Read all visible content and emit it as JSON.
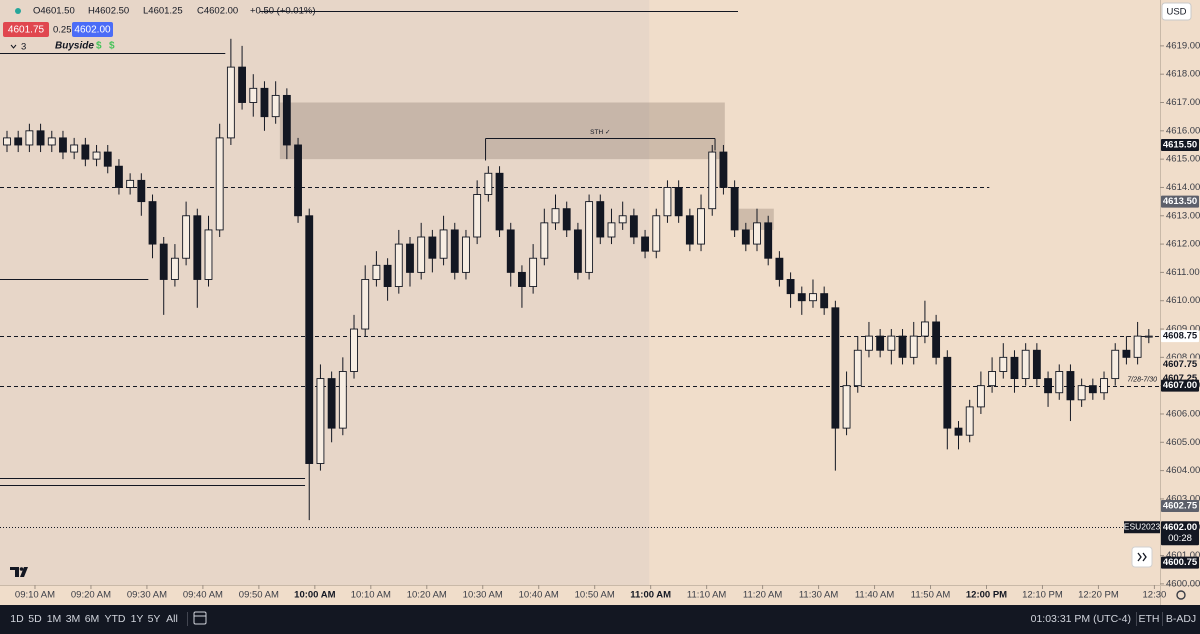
{
  "header": {
    "ohlc": [
      "O4601.50",
      "H4602.50",
      "L4601.25",
      "C4602.00",
      "+0.50 (+0.01%)"
    ],
    "bid": "4601.75",
    "spread": "0.25",
    "ask": "4602.00",
    "indicator_count": "3",
    "indicator": "Buyside",
    "badges": [
      "$",
      "$"
    ],
    "currency": "USD"
  },
  "chart_data": {
    "type": "candlestick",
    "x": [
      545,
      547,
      549,
      551,
      553,
      555,
      557,
      559,
      561,
      563,
      565,
      567,
      569,
      571,
      573,
      575,
      577,
      579,
      581,
      583,
      585,
      587,
      589,
      591,
      593,
      595,
      597,
      599,
      601,
      603,
      605,
      607,
      609,
      611,
      613,
      615,
      617,
      619,
      621,
      623,
      625,
      627,
      629,
      631,
      633,
      635,
      637,
      639,
      641,
      643,
      645,
      647,
      649,
      651,
      653,
      655,
      657,
      659,
      661,
      663,
      665,
      667,
      669,
      671,
      673,
      675,
      677,
      679,
      681,
      683,
      685,
      687,
      689,
      691,
      693,
      695,
      697,
      699,
      701,
      703,
      705,
      707,
      709,
      711,
      713,
      715,
      717,
      719,
      721,
      723,
      725,
      727,
      729,
      731,
      733,
      735,
      737,
      739,
      741,
      743,
      745,
      747,
      749
    ],
    "open": [
      4615.5,
      4615.75,
      4615.5,
      4616,
      4615.5,
      4615.75,
      4615.25,
      4615.5,
      4615,
      4615.25,
      4614.75,
      4614,
      4614.25,
      4613.5,
      4612,
      4610.75,
      4611.5,
      4613,
      4610.75,
      4612.5,
      4615.75,
      4618.25,
      4617,
      4617.5,
      4616.5,
      4617.25,
      4615.5,
      4613,
      4604.25,
      4607.25,
      4605.5,
      4607.5,
      4609,
      4610.75,
      4611.25,
      4610.5,
      4612,
      4611,
      4612.25,
      4611.5,
      4612.5,
      4611,
      4612.25,
      4613.75,
      4614.5,
      4612.5,
      4611,
      4610.5,
      4611.5,
      4612.75,
      4613.25,
      4612.5,
      4611,
      4613.5,
      4612.25,
      4612.75,
      4613,
      4612.25,
      4611.75,
      4613,
      4614,
      4613,
      4612,
      4613.25,
      4615.25,
      4614,
      4612.5,
      4612,
      4612.75,
      4611.5,
      4610.75,
      4610.25,
      4610,
      4610.25,
      4609.75,
      4605.5,
      4607,
      4608.25,
      4608.75,
      4608.25,
      4608.75,
      4608,
      4608.75,
      4609.25,
      4608,
      4605.5,
      4605.25,
      4606.25,
      4607,
      4607.5,
      4608,
      4607.25,
      4608.25,
      4607.25,
      4606.75,
      4607.5,
      4606.5,
      4607,
      4606.75,
      4607.25,
      4608.25,
      4608,
      4608.75
    ],
    "high": [
      4616,
      4616,
      4616.25,
      4616.25,
      4616,
      4616,
      4615.75,
      4615.75,
      4615.5,
      4615.5,
      4615,
      4614.5,
      4614.5,
      4613.75,
      4612.25,
      4612,
      4613.5,
      4613.25,
      4613,
      4616.25,
      4619.25,
      4619,
      4618,
      4617.75,
      4617.75,
      4617.5,
      4615.75,
      4613.25,
      4607.75,
      4607.5,
      4608,
      4609.5,
      4611.25,
      4611.75,
      4611.5,
      4612.5,
      4612.25,
      4612.75,
      4612.5,
      4613,
      4612.75,
      4612.5,
      4614.25,
      4614.75,
      4614.75,
      4612.75,
      4611.25,
      4612,
      4613.25,
      4613.75,
      4613.5,
      4612.75,
      4613.75,
      4613.75,
      4613.25,
      4613.5,
      4613.25,
      4612.5,
      4613.25,
      4614.25,
      4614.25,
      4613.25,
      4613.75,
      4615.5,
      4615.5,
      4614.25,
      4612.75,
      4613.25,
      4613,
      4611.75,
      4611,
      4610.5,
      4610.75,
      4610.5,
      4610,
      4607.5,
      4608.75,
      4609.25,
      4609,
      4609,
      4609,
      4609.25,
      4610,
      4609.5,
      4608.25,
      4605.75,
      4606.5,
      4607.5,
      4608,
      4608.5,
      4608.25,
      4608.5,
      4608.5,
      4607.5,
      4607.75,
      4607.75,
      4607.25,
      4607.25,
      4607.5,
      4608.5,
      4608.75,
      4609.25,
      4609
    ],
    "low": [
      4615.25,
      4615.25,
      4615.25,
      4615.25,
      4615.25,
      4615,
      4615,
      4614.75,
      4614.75,
      4614.5,
      4613.75,
      4613.75,
      4613,
      4611.5,
      4609.5,
      4610.5,
      4611.25,
      4609.75,
      4610.5,
      4612.25,
      4615.5,
      4616.75,
      4616.5,
      4616,
      4616.25,
      4615,
      4612.75,
      4602.25,
      4604,
      4605,
      4605.25,
      4607.25,
      4608.75,
      4610.5,
      4610,
      4610.25,
      4610.5,
      4610.75,
      4611,
      4611.25,
      4610.75,
      4610.75,
      4612,
      4613.5,
      4612.25,
      4610.5,
      4609.75,
      4610.25,
      4611.25,
      4612.5,
      4612.25,
      4610.75,
      4610.75,
      4612,
      4612,
      4612.5,
      4612,
      4611.5,
      4611.5,
      4612.75,
      4612.75,
      4611.75,
      4611.75,
      4613,
      4613.75,
      4612.25,
      4611.75,
      4611.75,
      4611.25,
      4610.5,
      4609.75,
      4609.5,
      4609.75,
      4609.5,
      4604,
      4605.25,
      4606.75,
      4608,
      4608,
      4607.75,
      4607.75,
      4607.75,
      4608.5,
      4607.75,
      4604.75,
      4604.75,
      4605,
      4606,
      4606.75,
      4607.25,
      4606.75,
      4607,
      4607,
      4606.25,
      4606.5,
      4605.75,
      4606.25,
      4606.5,
      4606.5,
      4607,
      4607.75,
      4607.75,
      4608.5
    ],
    "close": [
      4615.75,
      4615.5,
      4616,
      4615.5,
      4615.75,
      4615.25,
      4615.5,
      4615,
      4615.25,
      4614.75,
      4614,
      4614.25,
      4613.5,
      4612,
      4610.75,
      4611.5,
      4613,
      4610.75,
      4612.5,
      4615.75,
      4618.25,
      4617,
      4617.5,
      4616.5,
      4617.25,
      4615.5,
      4613,
      4604.25,
      4607.25,
      4605.5,
      4607.5,
      4609,
      4610.75,
      4611.25,
      4610.5,
      4612,
      4611,
      4612.25,
      4611.5,
      4612.5,
      4611,
      4612.25,
      4613.75,
      4614.5,
      4612.5,
      4611,
      4610.5,
      4611.5,
      4612.75,
      4613.25,
      4612.5,
      4611,
      4613.5,
      4612.25,
      4612.75,
      4613,
      4612.25,
      4611.75,
      4613,
      4614,
      4613,
      4612,
      4613.25,
      4615.25,
      4614,
      4612.5,
      4612,
      4612.75,
      4611.5,
      4610.75,
      4610.25,
      4610,
      4610.25,
      4609.75,
      4605.5,
      4607,
      4608.25,
      4608.75,
      4608.25,
      4608.75,
      4608,
      4608.75,
      4609.25,
      4608,
      4605.5,
      4605.25,
      4606.25,
      4607,
      4607.5,
      4608,
      4607.25,
      4608.25,
      4607.25,
      4606.75,
      4607.5,
      4606.5,
      4607,
      4606.75,
      4607.25,
      4608.25,
      4608,
      4608.75,
      4608.75
    ],
    "up_color": "#f7ede2",
    "down_color": "#131722",
    "outline_color": "#131722",
    "xlim": [
      543.75,
      751
    ],
    "ylim": [
      4599.96,
      4620.62
    ],
    "xticks": [
      {
        "value": 550,
        "label": "09:10 AM"
      },
      {
        "value": 560,
        "label": "09:20 AM"
      },
      {
        "value": 570,
        "label": "09:30 AM"
      },
      {
        "value": 580,
        "label": "09:40 AM"
      },
      {
        "value": 590,
        "label": "09:50 AM"
      },
      {
        "value": 600,
        "label": "10:00 AM"
      },
      {
        "value": 610,
        "label": "10:10 AM"
      },
      {
        "value": 620,
        "label": "10:20 AM"
      },
      {
        "value": 630,
        "label": "10:30 AM"
      },
      {
        "value": 640,
        "label": "10:40 AM"
      },
      {
        "value": 650,
        "label": "10:50 AM"
      },
      {
        "value": 660,
        "label": "11:00 AM"
      },
      {
        "value": 670,
        "label": "11:10 AM"
      },
      {
        "value": 680,
        "label": "11:20 AM"
      },
      {
        "value": 690,
        "label": "11:30 AM"
      },
      {
        "value": 700,
        "label": "11:40 AM"
      },
      {
        "value": 710,
        "label": "11:50 AM"
      },
      {
        "value": 720,
        "label": "12:00 PM"
      },
      {
        "value": 730,
        "label": "12:10 PM"
      },
      {
        "value": 740,
        "label": "12:20 PM"
      },
      {
        "value": 750,
        "label": "12:30"
      }
    ],
    "yticks": [
      {
        "value": 4600,
        "label": "4600.00"
      },
      {
        "value": 4601,
        "label": "4601.00"
      },
      {
        "value": 4602,
        "label": "4602.00"
      },
      {
        "value": 4603,
        "label": "4603.00"
      },
      {
        "value": 4604,
        "label": "4604.00"
      },
      {
        "value": 4605,
        "label": "4605.00"
      },
      {
        "value": 4606,
        "label": "4606.00"
      },
      {
        "value": 4607,
        "label": "4607.00"
      },
      {
        "value": 4608,
        "label": "4608.00"
      },
      {
        "value": 4609,
        "label": "4609.00"
      },
      {
        "value": 4610,
        "label": "4610.00"
      },
      {
        "value": 4611,
        "label": "4611.00"
      },
      {
        "value": 4612,
        "label": "4612.00"
      },
      {
        "value": 4613,
        "label": "4613.00"
      },
      {
        "value": 4614,
        "label": "4614.00"
      },
      {
        "value": 4615,
        "label": "4615.00"
      },
      {
        "value": 4616,
        "label": "4616.00"
      },
      {
        "value": 4617,
        "label": "4617.00"
      },
      {
        "value": 4618,
        "label": "4618.00"
      },
      {
        "value": 4619,
        "label": "4619.00"
      }
    ],
    "shade_to": 659.75,
    "lines": [
      {
        "value": 4618.75,
        "style": "solid",
        "to": 584
      },
      {
        "value": 4614,
        "style": "dashed",
        "to": 720.5
      },
      {
        "value": 4610.75,
        "style": "solid",
        "to": 570.25
      },
      {
        "value": 4608.75,
        "style": "dashed"
      },
      {
        "value": 4607,
        "style": "dashed"
      },
      {
        "value": 4603.75,
        "style": "solid",
        "to": 598.25
      },
      {
        "value": 4603.5,
        "style": "solid",
        "to": 598.25
      },
      {
        "value": 4602,
        "style": "dotted"
      }
    ],
    "zones": [
      {
        "low": 4615,
        "high": 4617,
        "from": 593.75,
        "to": 673.25
      },
      {
        "low": 4612.5,
        "high": 4613.25,
        "from": 675.75,
        "to": 682
      }
    ],
    "sth": {
      "label": "STH ✓",
      "value": 4615.75,
      "from": 630.5,
      "to": 671.5
    },
    "level_label": {
      "label": "7/28-7/30",
      "value": 4607
    },
    "price_markers": [
      {
        "value": 4615.5,
        "label": "4615.50",
        "bg": "#131722",
        "fg": "#ffffff"
      },
      {
        "value": 4613.5,
        "label": "4613.50",
        "bg": "#5d606b",
        "fg": "#ffffff"
      },
      {
        "value": 4608.75,
        "label": "4608.75",
        "bg": "#ffffff",
        "fg": "#131722"
      },
      {
        "value": 4607.75,
        "label": "4607.75",
        "bg": "#f0ddca",
        "fg": "#131722"
      },
      {
        "value": 4607.25,
        "label": "4607.25",
        "bg": "#f0ddca",
        "fg": "#131722"
      },
      {
        "value": 4607,
        "label": "4607.00",
        "bg": "#131722",
        "fg": "#ffffff"
      },
      {
        "value": 4602.75,
        "label": "4602.75",
        "bg": "#5d606b",
        "fg": "#ffffff"
      },
      {
        "value": 4602,
        "label": "4602.00",
        "bg": "#131722",
        "fg": "#ffffff",
        "sub": "00:28",
        "tag": "ESU2023"
      },
      {
        "value": 4600.75,
        "label": "4600.75",
        "bg": "#131722",
        "fg": "#ffffff"
      }
    ]
  },
  "toolbar": {
    "ranges": [
      "1D",
      "5D",
      "1M",
      "3M",
      "6M",
      "YTD",
      "1Y",
      "5Y",
      "All"
    ],
    "clock": "01:03:31 PM (UTC-4)",
    "session": "ETH",
    "adjust": "B-ADJ"
  }
}
